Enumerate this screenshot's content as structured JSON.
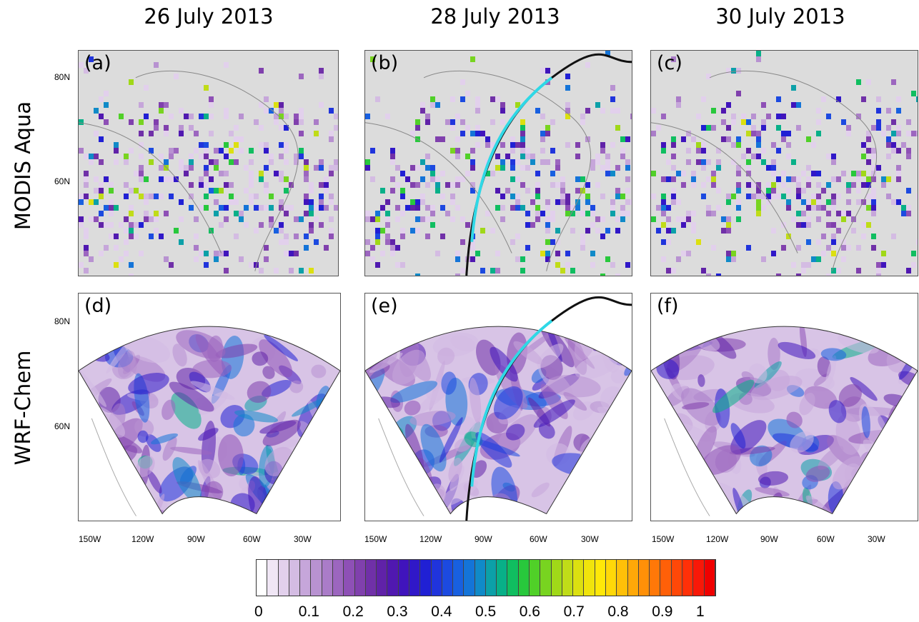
{
  "columns": [
    "26 July 2013",
    "28 July 2013",
    "30 July 2013"
  ],
  "rows": [
    "MODIS Aqua",
    "WRF-Chem"
  ],
  "panels": [
    {
      "label": "(a)",
      "row": 0,
      "col": 0,
      "type": "satellite",
      "track": false
    },
    {
      "label": "(b)",
      "row": 0,
      "col": 1,
      "type": "satellite",
      "track": true
    },
    {
      "label": "(c)",
      "row": 0,
      "col": 2,
      "type": "satellite",
      "track": false
    },
    {
      "label": "(d)",
      "row": 1,
      "col": 0,
      "type": "model",
      "track": false
    },
    {
      "label": "(e)",
      "row": 1,
      "col": 1,
      "type": "model",
      "track": true
    },
    {
      "label": "(f)",
      "row": 1,
      "col": 2,
      "type": "model",
      "track": false
    }
  ],
  "latitude_labels": [
    "80N",
    "60N"
  ],
  "longitude_labels": [
    "150W",
    "120W",
    "90W",
    "60W",
    "30W"
  ],
  "colorbar": {
    "tick_labels": [
      "0",
      "0.1",
      "0.2",
      "0.3",
      "0.4",
      "0.5",
      "0.6",
      "0.7",
      "0.8",
      "0.9",
      "1"
    ],
    "colors": [
      "#ffffff",
      "#f0e6f5",
      "#e2d0ec",
      "#d4bce3",
      "#c6a6da",
      "#b892d1",
      "#aa7cc8",
      "#9c66bf",
      "#8e50b6",
      "#8040ad",
      "#7030a8",
      "#6022a8",
      "#5018b0",
      "#4014bc",
      "#3018c8",
      "#2020d4",
      "#2034dc",
      "#1c4ae0",
      "#1860e0",
      "#1474d8",
      "#108ac8",
      "#0ca0a8",
      "#08b088",
      "#10be60",
      "#28c83c",
      "#50d028",
      "#78d420",
      "#a0d818",
      "#c0dc18",
      "#dce010",
      "#f0e40c",
      "#ffe808",
      "#ffd808",
      "#ffc008",
      "#ffa808",
      "#ff9008",
      "#ff7808",
      "#ff6008",
      "#ff4808",
      "#ff3008",
      "#f81808",
      "#f00000"
    ]
  },
  "track_colors": {
    "segment": "#2fd8e6",
    "line": "#111111"
  }
}
